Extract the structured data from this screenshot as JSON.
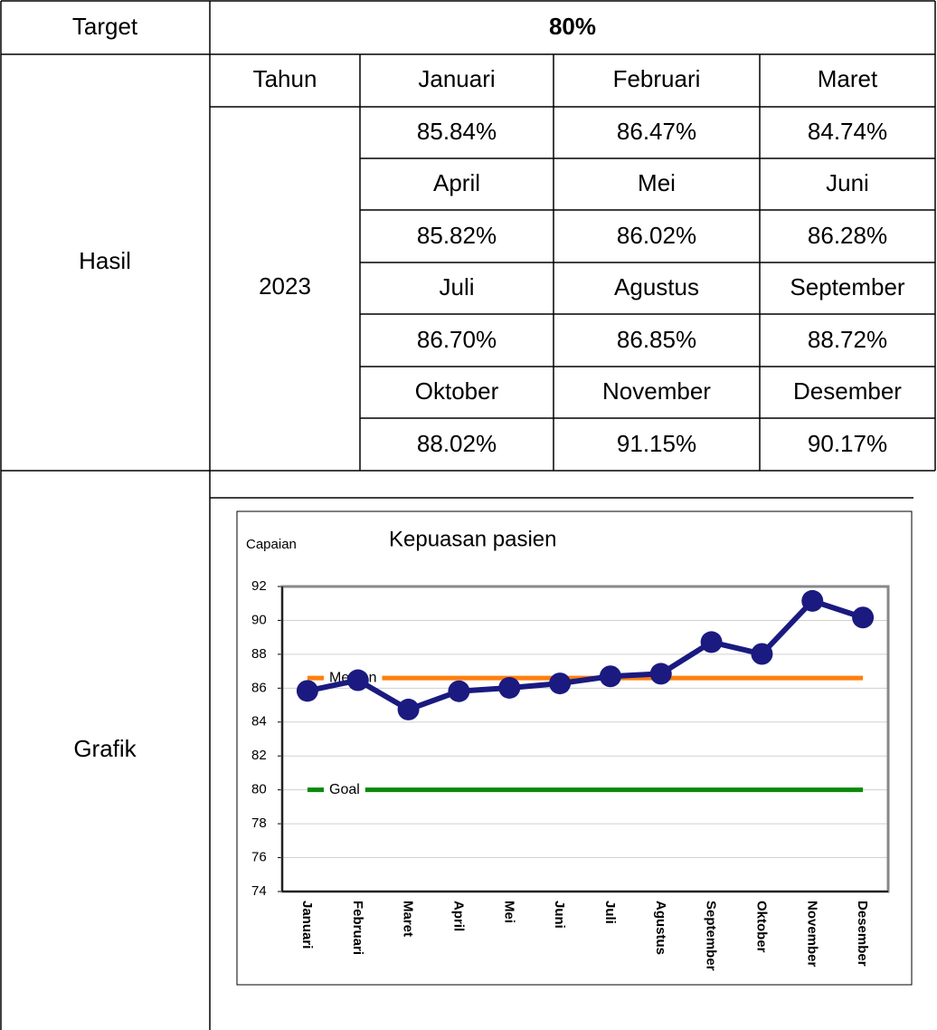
{
  "table": {
    "target_label": "Target",
    "target_value": "80%",
    "hasil_label": "Hasil",
    "tahun_label": "Tahun",
    "year": "2023",
    "months": [
      "Januari",
      "Februari",
      "Maret",
      "April",
      "Mei",
      "Juni",
      "Juli",
      "Agustus",
      "September",
      "Oktober",
      "November",
      "Desember"
    ],
    "results": [
      "85.84%",
      "86.47%",
      "84.74%",
      "85.82%",
      "86.02%",
      "86.28%",
      "86.70%",
      "86.85%",
      "88.72%",
      "88.02%",
      "91.15%",
      "90.17%"
    ],
    "grafik_label": "Grafik"
  },
  "chart_data": {
    "type": "line",
    "title": "Kepuasan pasien",
    "y_label": "Capaian",
    "categories": [
      "Januari",
      "Februari",
      "Maret",
      "April",
      "Mei",
      "Juni",
      "Juli",
      "Agustus",
      "September",
      "Oktober",
      "November",
      "Desember"
    ],
    "series": [
      {
        "color": "#1a1a80",
        "values": [
          85.84,
          86.47,
          84.74,
          85.82,
          86.02,
          86.28,
          86.7,
          86.85,
          88.72,
          88.02,
          91.15,
          90.17
        ]
      }
    ],
    "reference_lines": [
      {
        "label": "Median",
        "value": 86.6,
        "color": "#ff7f0e",
        "label_color": "#e8331c"
      },
      {
        "label": "Goal",
        "value": 80,
        "color": "#0a8a0a",
        "label_color": "#0a8a0a"
      }
    ],
    "ylim": [
      74,
      92
    ],
    "yticks": [
      74,
      76,
      78,
      80,
      82,
      84,
      86,
      88,
      90,
      92
    ],
    "grid": true
  }
}
